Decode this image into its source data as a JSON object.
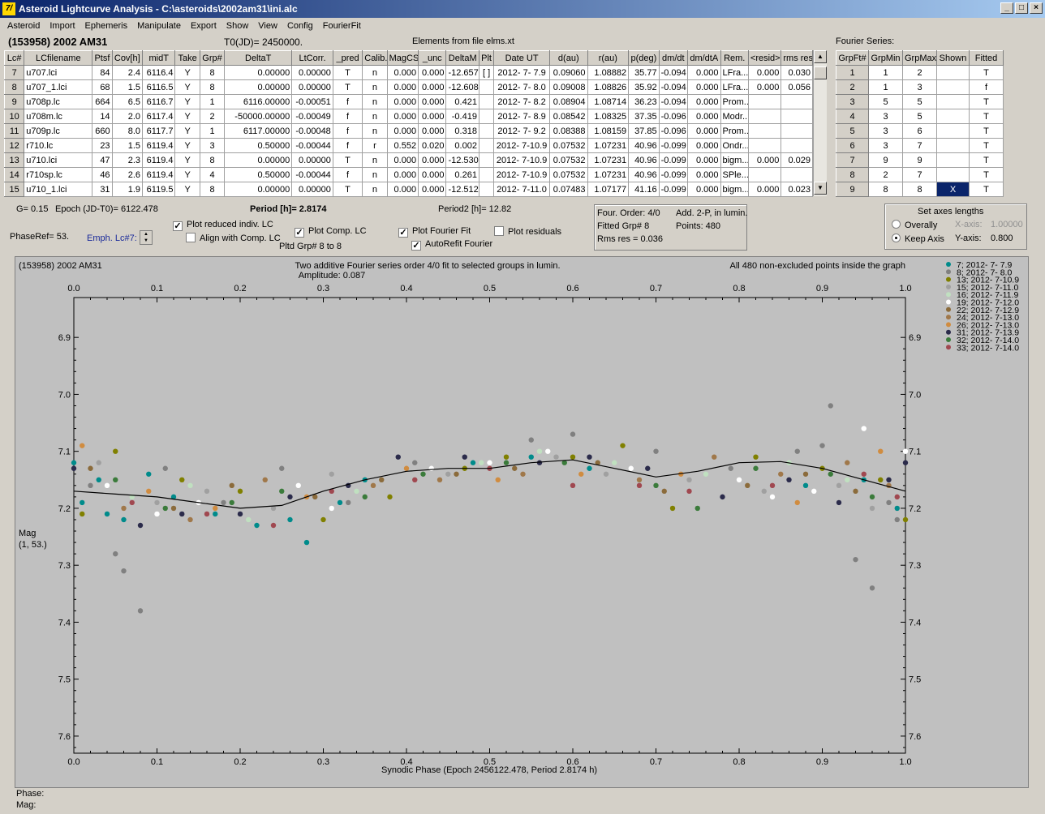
{
  "window": {
    "title": "Asteroid Lightcurve Analysis - C:\\asteroids\\2002am31\\ini.alc",
    "icon_label": "7/"
  },
  "menu": [
    "Asteroid",
    "Import",
    "Ephemeris",
    "Manipulate",
    "Export",
    "Show",
    "View",
    "Config",
    "FourierFit"
  ],
  "header": {
    "asteroid": "(153958) 2002 AM31",
    "t0": "T0(JD)= 2450000.",
    "elements": "Elements from file elms.xt",
    "fourier_series_label": "Fourier Series:"
  },
  "lc_table": {
    "columns": [
      "Lc#",
      "LCfilename",
      "Ptsf",
      "Cov[h]",
      "midT",
      "Take",
      "Grp#",
      "DeltaT",
      "LtCorr.",
      "_pred",
      "Calib.",
      "MagCS",
      "_unc",
      "DeltaM",
      "Plt",
      "Date UT",
      "d(au)",
      "r(au)",
      "p(deg)",
      "dm/dt",
      "dm/dtA",
      "Rem.",
      "<resid>",
      "rms res"
    ],
    "rows": [
      [
        "7",
        "u707.lci",
        "84",
        "2.4",
        "6116.4",
        "Y",
        "8",
        "0.00000",
        "0.00000",
        "T",
        "n",
        "0.000",
        "0.000",
        "-12.657",
        "[ ]",
        "2012- 7- 7.9",
        "0.09060",
        "1.08882",
        "35.77",
        "-0.094",
        "0.000",
        "LFra...",
        "0.000",
        "0.030"
      ],
      [
        "8",
        "u707_1.lci",
        "68",
        "1.5",
        "6116.5",
        "Y",
        "8",
        "0.00000",
        "0.00000",
        "T",
        "n",
        "0.000",
        "0.000",
        "-12.608",
        "",
        "2012- 7- 8.0",
        "0.09008",
        "1.08826",
        "35.92",
        "-0.094",
        "0.000",
        "LFra...",
        "0.000",
        "0.056"
      ],
      [
        "9",
        "u708p.lc",
        "664",
        "6.5",
        "6116.7",
        "Y",
        "1",
        "6116.00000",
        "-0.00051",
        "f",
        "n",
        "0.000",
        "0.000",
        "0.421",
        "",
        "2012- 7- 8.2",
        "0.08904",
        "1.08714",
        "36.23",
        "-0.094",
        "0.000",
        "Prom...",
        "",
        ""
      ],
      [
        "10",
        "u708m.lc",
        "14",
        "2.0",
        "6117.4",
        "Y",
        "2",
        "-50000.00000",
        "-0.00049",
        "f",
        "n",
        "0.000",
        "0.000",
        "-0.419",
        "",
        "2012- 7- 8.9",
        "0.08542",
        "1.08325",
        "37.35",
        "-0.096",
        "0.000",
        "Modr...",
        "",
        ""
      ],
      [
        "11",
        "u709p.lc",
        "660",
        "8.0",
        "6117.7",
        "Y",
        "1",
        "6117.00000",
        "-0.00048",
        "f",
        "n",
        "0.000",
        "0.000",
        "0.318",
        "",
        "2012- 7- 9.2",
        "0.08388",
        "1.08159",
        "37.85",
        "-0.096",
        "0.000",
        "Prom...",
        "",
        ""
      ],
      [
        "12",
        "r710.lc",
        "23",
        "1.5",
        "6119.4",
        "Y",
        "3",
        "0.50000",
        "-0.00044",
        "f",
        "r",
        "0.552",
        "0.020",
        "0.002",
        "",
        "2012- 7-10.9",
        "0.07532",
        "1.07231",
        "40.96",
        "-0.099",
        "0.000",
        "Ondr...",
        "",
        ""
      ],
      [
        "13",
        "u710.lci",
        "47",
        "2.3",
        "6119.4",
        "Y",
        "8",
        "0.00000",
        "0.00000",
        "T",
        "n",
        "0.000",
        "0.000",
        "-12.530",
        "",
        "2012- 7-10.9",
        "0.07532",
        "1.07231",
        "40.96",
        "-0.099",
        "0.000",
        "bigm...",
        "0.000",
        "0.029"
      ],
      [
        "14",
        "r710sp.lc",
        "46",
        "2.6",
        "6119.4",
        "Y",
        "4",
        "0.50000",
        "-0.00044",
        "f",
        "n",
        "0.000",
        "0.000",
        "0.261",
        "",
        "2012- 7-10.9",
        "0.07532",
        "1.07231",
        "40.96",
        "-0.099",
        "0.000",
        "SPle...",
        "",
        ""
      ],
      [
        "15",
        "u710_1.lci",
        "31",
        "1.9",
        "6119.5",
        "Y",
        "8",
        "0.00000",
        "0.00000",
        "T",
        "n",
        "0.000",
        "0.000",
        "-12.512",
        "",
        "2012- 7-11.0",
        "0.07483",
        "1.07177",
        "41.16",
        "-0.099",
        "0.000",
        "bigm...",
        "0.000",
        "0.023"
      ]
    ]
  },
  "fourier_table": {
    "columns": [
      "GrpFt#",
      "GrpMin",
      "GrpMax",
      "Shown",
      "Fitted"
    ],
    "rows": [
      [
        "1",
        "1",
        "2",
        "",
        "T"
      ],
      [
        "2",
        "1",
        "3",
        "",
        "f"
      ],
      [
        "3",
        "5",
        "5",
        "",
        "T"
      ],
      [
        "4",
        "3",
        "5",
        "",
        "T"
      ],
      [
        "5",
        "3",
        "6",
        "",
        "T"
      ],
      [
        "6",
        "3",
        "7",
        "",
        "T"
      ],
      [
        "7",
        "9",
        "9",
        "",
        "T"
      ],
      [
        "8",
        "2",
        "7",
        "",
        "T"
      ],
      [
        "9",
        "8",
        "8",
        "X",
        "T"
      ]
    ]
  },
  "controls": {
    "g": "G= 0.15",
    "epoch": "Epoch (JD-T0)= 6122.478",
    "period": "Period [h]= 2.8174",
    "period2": "Period2 [h]= 12.82",
    "phaseref": "PhaseRef= 53.",
    "emph": "Emph. Lc#7:",
    "plot_reduced": "Plot reduced indiv. LC",
    "align": "Align with Comp. LC",
    "plot_comp": "Plot Comp. LC",
    "pltd": "Pltd Grp#  8   to    8",
    "plot_fourier": "Plot Fourier Fit",
    "autorefit": "AutoRefit Fourier",
    "plot_residuals": "Plot residuals",
    "four_order": "Four. Order:  4/0",
    "add": "Add. 2-P, in lumin.",
    "fitted_grp": "Fitted Grp# 8",
    "points": "Points: 480",
    "rms": "Rms res     = 0.036",
    "axes_title": "Set axes lengths",
    "overally": "Overally",
    "keep_axis": "Keep Axis",
    "xaxis_label": "X-axis:",
    "xaxis_val": "1.00000",
    "yaxis_label": "Y-axis:",
    "yaxis_val": "0.800"
  },
  "chart_data": {
    "type": "scatter",
    "title": "Two additive Fourier series order 4/0 fit to selected groups in lumin.",
    "subtitle": "Amplitude: 0.087",
    "top_left": "(153958) 2002 AM31",
    "top_right": "All 480 non-excluded points inside the graph",
    "xlabel": "Synodic Phase (Epoch 2456122.478, Period 2.8174 h)",
    "ylabel": "Mag",
    "ylabel2": "(1, 53.)",
    "xlim": [
      0,
      1
    ],
    "ylim": [
      7.63,
      6.83
    ],
    "xticks": [
      "0.0",
      "0.1",
      "0.2",
      "0.3",
      "0.4",
      "0.5",
      "0.6",
      "0.7",
      "0.8",
      "0.9",
      "1.0"
    ],
    "yticks": [
      "6.9",
      "7.0",
      "7.1",
      "7.2",
      "7.3",
      "7.4",
      "7.5",
      "7.6"
    ],
    "fit_curve": {
      "x": [
        0,
        0.05,
        0.1,
        0.15,
        0.2,
        0.25,
        0.3,
        0.35,
        0.4,
        0.45,
        0.5,
        0.55,
        0.6,
        0.65,
        0.7,
        0.75,
        0.8,
        0.85,
        0.9,
        0.95,
        1.0
      ],
      "y": [
        7.17,
        7.175,
        7.18,
        7.19,
        7.2,
        7.195,
        7.17,
        7.15,
        7.135,
        7.13,
        7.13,
        7.12,
        7.115,
        7.13,
        7.145,
        7.135,
        7.12,
        7.118,
        7.13,
        7.15,
        7.17
      ]
    },
    "series": [
      {
        "name": "7; 2012- 7- 7.9",
        "color": "#008b8b",
        "points": [
          [
            0.0,
            7.12
          ],
          [
            0.01,
            7.19
          ],
          [
            0.03,
            7.15
          ],
          [
            0.04,
            7.21
          ],
          [
            0.06,
            7.22
          ],
          [
            0.09,
            7.14
          ],
          [
            0.12,
            7.18
          ],
          [
            0.17,
            7.21
          ],
          [
            0.22,
            7.23
          ],
          [
            0.26,
            7.22
          ],
          [
            0.28,
            7.26
          ],
          [
            0.32,
            7.19
          ],
          [
            0.35,
            7.15
          ],
          [
            0.48,
            7.12
          ],
          [
            0.55,
            7.11
          ],
          [
            0.62,
            7.13
          ],
          [
            0.88,
            7.16
          ],
          [
            0.95,
            7.15
          ],
          [
            0.99,
            7.2
          ]
        ]
      },
      {
        "name": "8; 2012- 7- 8.0",
        "color": "#808080",
        "points": [
          [
            0.02,
            7.16
          ],
          [
            0.05,
            7.28
          ],
          [
            0.06,
            7.31
          ],
          [
            0.08,
            7.38
          ],
          [
            0.11,
            7.13
          ],
          [
            0.18,
            7.19
          ],
          [
            0.25,
            7.13
          ],
          [
            0.33,
            7.19
          ],
          [
            0.41,
            7.12
          ],
          [
            0.55,
            7.08
          ],
          [
            0.6,
            7.07
          ],
          [
            0.7,
            7.1
          ],
          [
            0.79,
            7.13
          ],
          [
            0.87,
            7.1
          ],
          [
            0.9,
            7.09
          ],
          [
            0.91,
            7.02
          ],
          [
            0.94,
            7.29
          ],
          [
            0.96,
            7.34
          ],
          [
            0.98,
            7.19
          ],
          [
            0.99,
            7.22
          ]
        ]
      },
      {
        "name": "13; 2012- 7-10.9",
        "color": "#808000",
        "points": [
          [
            0.01,
            7.21
          ],
          [
            0.05,
            7.1
          ],
          [
            0.13,
            7.15
          ],
          [
            0.2,
            7.17
          ],
          [
            0.3,
            7.22
          ],
          [
            0.38,
            7.18
          ],
          [
            0.47,
            7.13
          ],
          [
            0.52,
            7.11
          ],
          [
            0.6,
            7.11
          ],
          [
            0.66,
            7.09
          ],
          [
            0.72,
            7.2
          ],
          [
            0.82,
            7.11
          ],
          [
            0.9,
            7.13
          ],
          [
            0.97,
            7.15
          ],
          [
            1.0,
            7.22
          ]
        ]
      },
      {
        "name": "15; 2012- 7-11.0",
        "color": "#a0a0a0",
        "points": [
          [
            0.03,
            7.12
          ],
          [
            0.1,
            7.19
          ],
          [
            0.16,
            7.17
          ],
          [
            0.24,
            7.2
          ],
          [
            0.31,
            7.14
          ],
          [
            0.45,
            7.14
          ],
          [
            0.58,
            7.11
          ],
          [
            0.64,
            7.14
          ],
          [
            0.74,
            7.15
          ],
          [
            0.83,
            7.17
          ],
          [
            0.92,
            7.16
          ],
          [
            0.96,
            7.2
          ]
        ]
      },
      {
        "name": "16; 2012- 7-11.9",
        "color": "#c0e0c0",
        "points": [
          [
            0.07,
            7.18
          ],
          [
            0.14,
            7.16
          ],
          [
            0.21,
            7.22
          ],
          [
            0.34,
            7.17
          ],
          [
            0.49,
            7.12
          ],
          [
            0.56,
            7.1
          ],
          [
            0.65,
            7.12
          ],
          [
            0.76,
            7.14
          ],
          [
            0.86,
            7.12
          ],
          [
            0.93,
            7.15
          ]
        ]
      },
      {
        "name": "19; 2012- 7-12.0",
        "color": "#ffffff",
        "points": [
          [
            0.04,
            7.16
          ],
          [
            0.1,
            7.21
          ],
          [
            0.15,
            7.19
          ],
          [
            0.27,
            7.16
          ],
          [
            0.31,
            7.2
          ],
          [
            0.43,
            7.13
          ],
          [
            0.5,
            7.12
          ],
          [
            0.57,
            7.1
          ],
          [
            0.67,
            7.13
          ],
          [
            0.8,
            7.15
          ],
          [
            0.84,
            7.18
          ],
          [
            0.89,
            7.17
          ],
          [
            0.95,
            7.06
          ],
          [
            1.0,
            7.1
          ]
        ]
      },
      {
        "name": "22; 2012- 7-12.9",
        "color": "#8b6b3b",
        "points": [
          [
            0.02,
            7.13
          ],
          [
            0.12,
            7.2
          ],
          [
            0.19,
            7.16
          ],
          [
            0.29,
            7.18
          ],
          [
            0.37,
            7.15
          ],
          [
            0.46,
            7.14
          ],
          [
            0.53,
            7.13
          ],
          [
            0.63,
            7.12
          ],
          [
            0.71,
            7.17
          ],
          [
            0.81,
            7.16
          ],
          [
            0.88,
            7.14
          ],
          [
            0.94,
            7.17
          ]
        ]
      },
      {
        "name": "24; 2012- 7-13.0",
        "color": "#a0784a",
        "points": [
          [
            0.06,
            7.2
          ],
          [
            0.14,
            7.22
          ],
          [
            0.23,
            7.15
          ],
          [
            0.36,
            7.16
          ],
          [
            0.44,
            7.15
          ],
          [
            0.54,
            7.14
          ],
          [
            0.68,
            7.15
          ],
          [
            0.77,
            7.11
          ],
          [
            0.85,
            7.14
          ],
          [
            0.93,
            7.12
          ],
          [
            0.98,
            7.16
          ]
        ]
      },
      {
        "name": "26; 2012- 7-13.0",
        "color": "#d08c40",
        "points": [
          [
            0.01,
            7.09
          ],
          [
            0.09,
            7.17
          ],
          [
            0.17,
            7.2
          ],
          [
            0.28,
            7.18
          ],
          [
            0.4,
            7.13
          ],
          [
            0.51,
            7.15
          ],
          [
            0.61,
            7.14
          ],
          [
            0.73,
            7.14
          ],
          [
            0.87,
            7.19
          ],
          [
            0.97,
            7.1
          ]
        ]
      },
      {
        "name": "31; 2012- 7-13.9",
        "color": "#2b2b4b",
        "points": [
          [
            0.0,
            7.13
          ],
          [
            0.08,
            7.23
          ],
          [
            0.13,
            7.21
          ],
          [
            0.2,
            7.21
          ],
          [
            0.26,
            7.18
          ],
          [
            0.33,
            7.16
          ],
          [
            0.39,
            7.11
          ],
          [
            0.47,
            7.11
          ],
          [
            0.56,
            7.12
          ],
          [
            0.62,
            7.11
          ],
          [
            0.69,
            7.13
          ],
          [
            0.78,
            7.18
          ],
          [
            0.86,
            7.15
          ],
          [
            0.92,
            7.19
          ],
          [
            0.98,
            7.15
          ],
          [
            1.0,
            7.12
          ]
        ]
      },
      {
        "name": "32; 2012- 7-14.0",
        "color": "#3b7b3b",
        "points": [
          [
            0.05,
            7.15
          ],
          [
            0.11,
            7.2
          ],
          [
            0.19,
            7.19
          ],
          [
            0.25,
            7.17
          ],
          [
            0.35,
            7.18
          ],
          [
            0.42,
            7.14
          ],
          [
            0.52,
            7.12
          ],
          [
            0.59,
            7.12
          ],
          [
            0.7,
            7.16
          ],
          [
            0.75,
            7.2
          ],
          [
            0.82,
            7.13
          ],
          [
            0.91,
            7.14
          ],
          [
            0.96,
            7.18
          ]
        ]
      },
      {
        "name": "33; 2012- 7-14.0",
        "color": "#a04850",
        "points": [
          [
            0.07,
            7.19
          ],
          [
            0.16,
            7.21
          ],
          [
            0.24,
            7.23
          ],
          [
            0.31,
            7.17
          ],
          [
            0.41,
            7.15
          ],
          [
            0.5,
            7.13
          ],
          [
            0.6,
            7.16
          ],
          [
            0.68,
            7.16
          ],
          [
            0.74,
            7.17
          ],
          [
            0.84,
            7.16
          ],
          [
            0.95,
            7.14
          ],
          [
            0.99,
            7.18
          ]
        ]
      }
    ]
  },
  "status": {
    "phase": "Phase:",
    "mag": "Mag:"
  }
}
